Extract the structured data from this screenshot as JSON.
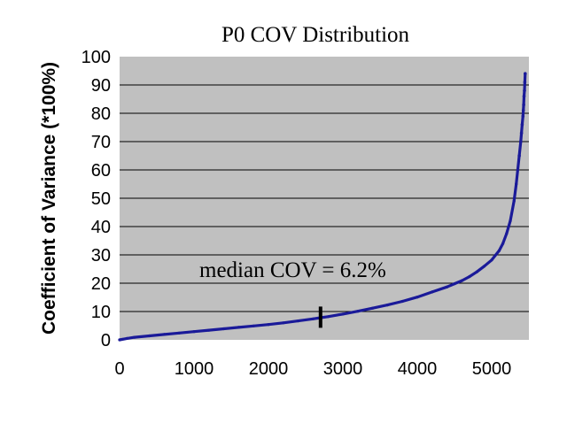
{
  "chart_data": {
    "type": "scatter",
    "title": "P0 COV Distribution",
    "xlabel": "",
    "ylabel": "Coefficient of Variance (*100%)",
    "xlim": [
      0,
      5500
    ],
    "ylim": [
      0,
      100
    ],
    "x_ticks": [
      "0",
      "1000",
      "2000",
      "3000",
      "4000",
      "5000"
    ],
    "y_ticks": [
      "0",
      "10",
      "20",
      "30",
      "40",
      "50",
      "60",
      "70",
      "80",
      "90",
      "100"
    ],
    "grid": true,
    "legend": "none",
    "annotation": {
      "text": "median COV = 6.2%",
      "marker_x": 2700,
      "marker_y": 8
    },
    "colors": {
      "plot_background": "#c0c0c0",
      "series": "#1a1a99",
      "grid": "#000000",
      "marker": "#000000"
    },
    "points": [
      [
        0,
        0
      ],
      [
        100,
        0.5
      ],
      [
        200,
        0.9
      ],
      [
        400,
        1.4
      ],
      [
        600,
        1.9
      ],
      [
        800,
        2.4
      ],
      [
        1000,
        2.9
      ],
      [
        1200,
        3.4
      ],
      [
        1400,
        3.9
      ],
      [
        1600,
        4.4
      ],
      [
        1800,
        4.9
      ],
      [
        2000,
        5.4
      ],
      [
        2200,
        6.0
      ],
      [
        2400,
        6.7
      ],
      [
        2600,
        7.4
      ],
      [
        2700,
        7.8
      ],
      [
        2800,
        8.2
      ],
      [
        3000,
        9.1
      ],
      [
        3200,
        10.1
      ],
      [
        3400,
        11.2
      ],
      [
        3600,
        12.3
      ],
      [
        3800,
        13.6
      ],
      [
        4000,
        15.1
      ],
      [
        4200,
        16.9
      ],
      [
        4400,
        18.7
      ],
      [
        4500,
        19.8
      ],
      [
        4600,
        20.9
      ],
      [
        4700,
        22.3
      ],
      [
        4800,
        24.0
      ],
      [
        4900,
        26.0
      ],
      [
        5000,
        28.2
      ],
      [
        5100,
        31.5
      ],
      [
        5150,
        34.0
      ],
      [
        5200,
        37.5
      ],
      [
        5250,
        42.0
      ],
      [
        5300,
        49.0
      ],
      [
        5330,
        55.0
      ],
      [
        5350,
        60.0
      ],
      [
        5370,
        65.0
      ],
      [
        5390,
        70.0
      ],
      [
        5400,
        73.0
      ],
      [
        5410,
        76.0
      ],
      [
        5420,
        79.0
      ],
      [
        5425,
        81.0
      ],
      [
        5430,
        83.0
      ],
      [
        5435,
        86.0
      ],
      [
        5440,
        88.0
      ],
      [
        5445,
        91.0
      ],
      [
        5450,
        94.0
      ]
    ]
  }
}
